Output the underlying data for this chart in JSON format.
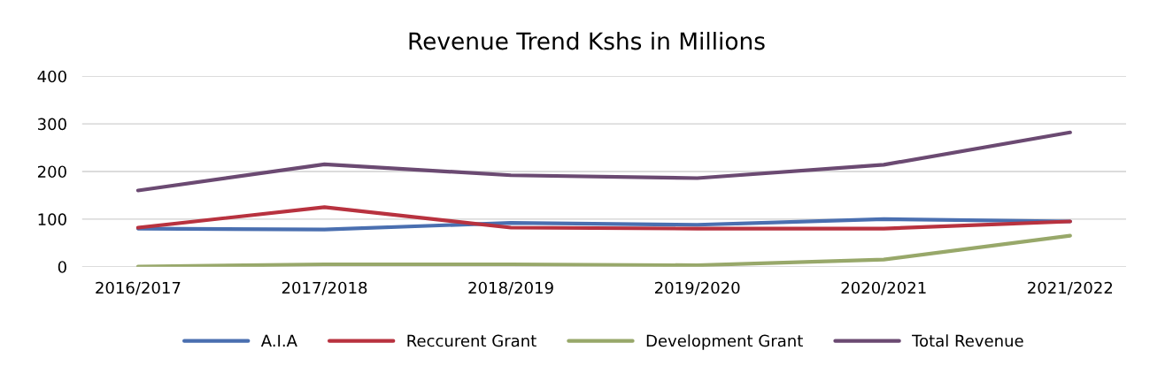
{
  "chart_data": {
    "type": "line",
    "title": "Revenue Trend Kshs in Millions",
    "categories": [
      "2016/2017",
      "2017/2018",
      "2018/2019",
      "2019/2020",
      "2020/2021",
      "2021/2022"
    ],
    "series": [
      {
        "name": "A.I.A",
        "color": "#4a6fb0",
        "values": [
          80,
          78,
          92,
          88,
          100,
          95
        ]
      },
      {
        "name": "Reccurent Grant",
        "color": "#b8323f",
        "values": [
          82,
          125,
          82,
          80,
          80,
          95
        ]
      },
      {
        "name": "Development Grant",
        "color": "#98a86a",
        "values": [
          0,
          5,
          5,
          3,
          15,
          65
        ]
      },
      {
        "name": "Total Revenue",
        "color": "#6b4a72",
        "values": [
          160,
          215,
          192,
          186,
          214,
          282
        ]
      }
    ],
    "ylim": [
      0,
      400
    ],
    "yticks": [
      0,
      100,
      200,
      300,
      400
    ],
    "grid": "y",
    "legend": "bottom",
    "marker": "none",
    "line_style": "solid"
  }
}
